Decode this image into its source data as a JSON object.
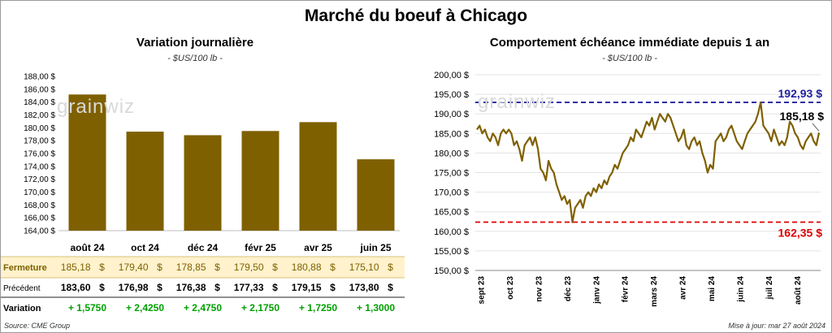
{
  "title": "Marché du boeuf à Chicago",
  "left": {
    "subtitle": "Variation journalière",
    "unit": "- $US/100 lb -",
    "table_labels": [
      "Fermeture",
      "Précédent",
      "Variation"
    ],
    "close_values": [
      "185,18",
      "179,40",
      "178,85",
      "179,50",
      "180,88",
      "175,10"
    ],
    "prev_values": [
      "183,60",
      "176,98",
      "176,38",
      "177,33",
      "179,15",
      "173,80"
    ],
    "change_values": [
      "+ 1,5750",
      "+ 2,4250",
      "+ 2,4750",
      "+ 2,1750",
      "+ 1,7250",
      "+ 1,3000"
    ],
    "currency": "$"
  },
  "right": {
    "subtitle": "Comportement  échéance immédiate depuis 1 an",
    "unit": "- $US/100 lb -",
    "max_label": "192,93 $",
    "min_label": "162,35 $",
    "last_label": "185,18 $"
  },
  "watermark": "grainwiz",
  "source": "Source: CME Group",
  "updated": "Mise à jour: mar 27 août 2024",
  "colors": {
    "bar": "#7f6000",
    "line": "#7f6000",
    "max": "#1f1fa0",
    "min": "#e00000",
    "highlight": "#fff2cc",
    "change": "#00a000"
  },
  "chart_data": [
    {
      "type": "bar",
      "categories": [
        "août 24",
        "oct 24",
        "déc 24",
        "févr 25",
        "avr 25",
        "juin 25"
      ],
      "values": [
        185.18,
        179.4,
        178.85,
        179.5,
        180.88,
        175.1
      ],
      "ylim": [
        164,
        188
      ],
      "yticks": [
        "164,00 $",
        "166,00 $",
        "168,00 $",
        "170,00 $",
        "172,00 $",
        "174,00 $",
        "176,00 $",
        "178,00 $",
        "180,00 $",
        "182,00 $",
        "184,00 $",
        "186,00 $",
        "188,00 $"
      ]
    },
    {
      "type": "line",
      "x_ticks": [
        "sept 23",
        "oct 23",
        "nov 23",
        "déc 23",
        "janv 24",
        "févr 24",
        "mars 24",
        "avr 24",
        "mai 24",
        "juin 24",
        "juil 24",
        "août 24"
      ],
      "ylim": [
        150,
        200
      ],
      "yticks": [
        "150,00 $",
        "155,00 $",
        "160,00 $",
        "165,00 $",
        "170,00 $",
        "175,00 $",
        "180,00 $",
        "185,00 $",
        "190,00 $",
        "195,00 $",
        "200,00 $"
      ],
      "max": 192.93,
      "min": 162.35,
      "last": 185.18,
      "values": [
        186,
        187,
        185,
        186,
        184,
        183,
        185,
        184,
        182,
        185,
        186,
        185,
        186,
        185,
        182,
        183,
        181,
        178,
        182,
        183,
        184,
        182,
        184,
        181,
        176,
        175,
        173,
        178,
        176,
        175,
        172,
        170,
        168,
        169,
        167,
        168,
        162.35,
        166,
        167,
        168,
        166,
        169,
        170,
        169,
        171,
        170,
        172,
        171,
        173,
        172,
        174,
        175,
        177,
        176,
        178,
        180,
        181,
        182,
        184,
        183,
        186,
        185,
        184,
        186,
        188,
        187,
        189,
        186,
        188,
        190,
        189,
        188,
        190,
        189,
        187,
        185,
        183,
        184,
        186,
        182,
        181,
        183,
        184,
        182,
        183,
        180,
        178,
        175,
        177,
        176,
        183,
        184,
        185,
        183,
        184,
        186,
        187,
        185,
        183,
        182,
        181,
        183,
        185,
        186,
        187,
        188,
        190,
        192.93,
        187,
        186,
        185,
        183,
        186,
        184,
        182,
        183,
        182,
        184,
        188,
        187,
        185,
        184,
        182,
        181,
        183,
        184,
        185,
        183,
        182,
        185.18
      ]
    }
  ]
}
